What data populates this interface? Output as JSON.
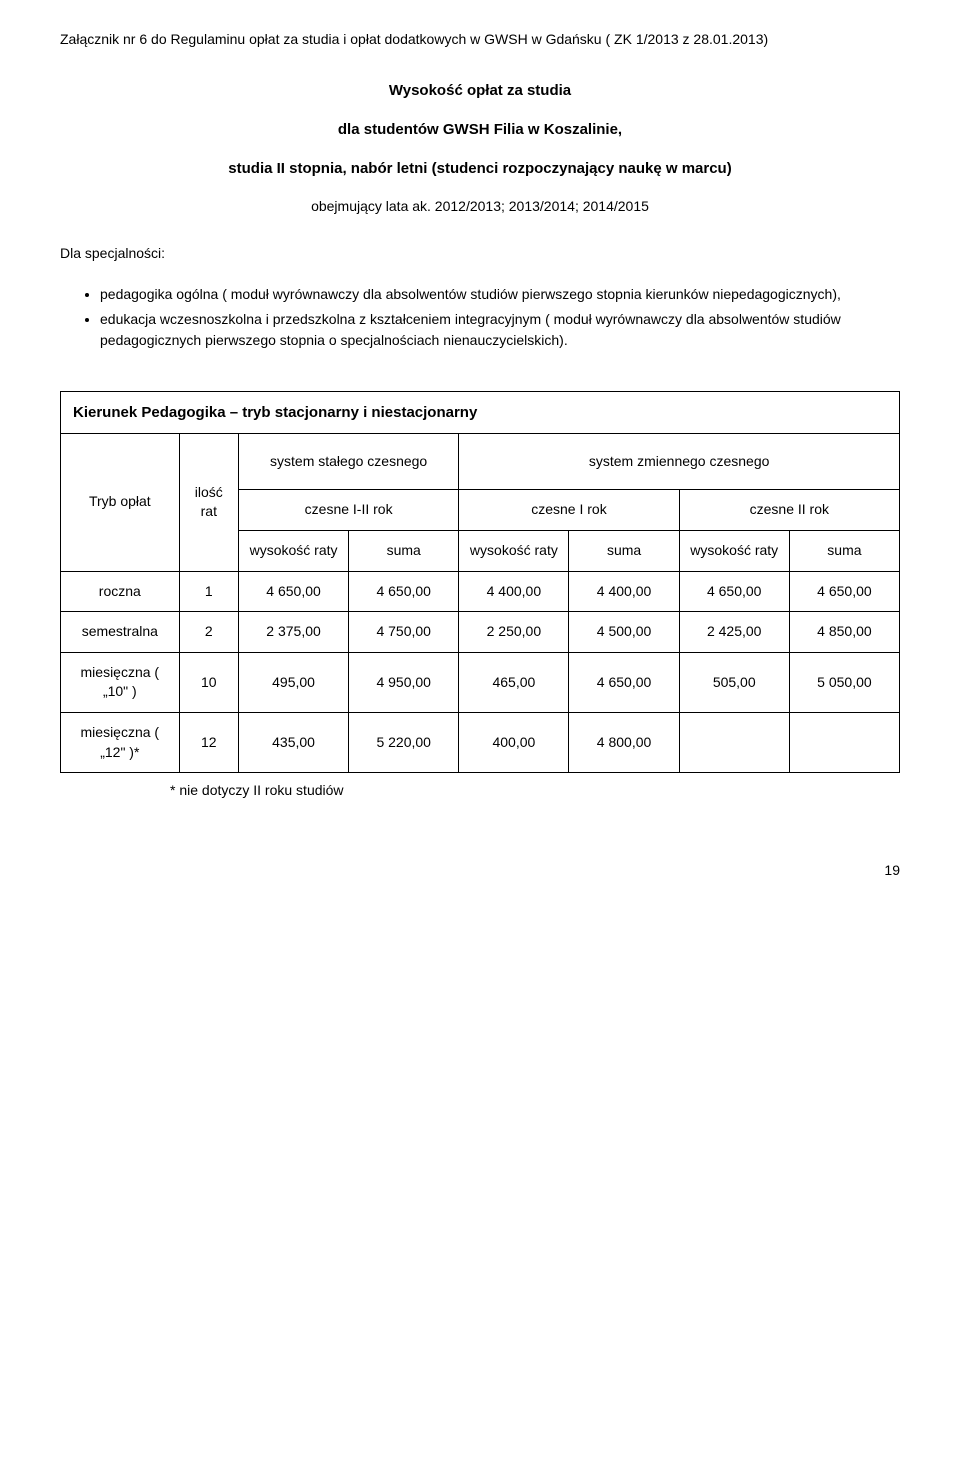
{
  "header": "Załącznik nr 6 do Regulaminu opłat za studia i opłat dodatkowych w GWSH w Gdańsku ( ZK 1/2013 z 28.01.2013)",
  "title": {
    "line1": "Wysokość opłat za studia",
    "line2": "dla studentów GWSH Filia w Koszalinie,",
    "line3": "studia II stopnia, nabór letni (studenci rozpoczynający naukę w marcu)",
    "line4": "obejmujący lata ak. 2012/2013; 2013/2014; 2014/2015"
  },
  "spec_label": "Dla specjalności:",
  "spec_list": [
    "pedagogika ogólna ( moduł wyrównawczy dla absolwentów studiów pierwszego stopnia kierunków niepedagogicznych),",
    "edukacja wczesnoszkolna i przedszkolna z kształceniem integracyjnym ( moduł wyrównawczy dla absolwentów studiów pedagogicznych pierwszego stopnia o specjalnościach nienauczycielskich)."
  ],
  "table": {
    "title": "Kierunek Pedagogika – tryb stacjonarny i niestacjonarny",
    "headers": {
      "system_stale": "system stałego czesnego",
      "system_zmienne": "system zmiennego czesnego",
      "czesne12": "czesne I-II rok",
      "czesne1": "czesne I rok",
      "czesne2": "czesne II rok",
      "tryb": "Tryb opłat",
      "ilosc": "ilość rat",
      "wys": "wysokość raty",
      "suma": "suma"
    },
    "rows": [
      {
        "tryb": "roczna",
        "ilosc": "1",
        "w1": "4 650,00",
        "s1": "4 650,00",
        "w2": "4 400,00",
        "s2": "4 400,00",
        "w3": "4 650,00",
        "s3": "4 650,00"
      },
      {
        "tryb": "semestralna",
        "ilosc": "2",
        "w1": "2 375,00",
        "s1": "4 750,00",
        "w2": "2 250,00",
        "s2": "4 500,00",
        "w3": "2 425,00",
        "s3": "4 850,00"
      },
      {
        "tryb": "miesięczna ( \"10\" )",
        "ilosc": "10",
        "w1": "495,00",
        "s1": "4 950,00",
        "w2": "465,00",
        "s2": "4 650,00",
        "w3": "505,00",
        "s3": "5 050,00"
      },
      {
        "tryb": "miesięczna ( \"12\" )*",
        "ilosc": "12",
        "w1": "435,00",
        "s1": "5 220,00",
        "w2": "400,00",
        "s2": "4 800,00",
        "w3": "",
        "s3": ""
      }
    ],
    "footnote": "* nie dotyczy II roku studiów"
  },
  "page_number": "19"
}
